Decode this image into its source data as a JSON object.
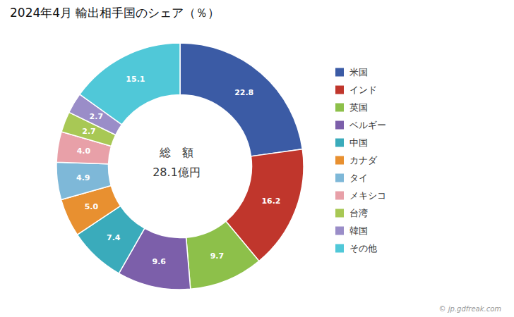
{
  "chart_data": {
    "type": "pie",
    "title": "2024年4月 輸出相手国のシェア（％）",
    "categories": [
      "米国",
      "インド",
      "英国",
      "ベルギー",
      "中国",
      "カナダ",
      "タイ",
      "メキシコ",
      "台湾",
      "韓国",
      "その他"
    ],
    "values": [
      22.8,
      16.2,
      9.7,
      9.6,
      7.4,
      5.0,
      4.9,
      4.0,
      2.7,
      2.7,
      15.1
    ],
    "value_labels": [
      "22.8",
      "16.2",
      "9.7",
      "9.6",
      "7.4",
      "5.0",
      "4.9",
      "4.0",
      "2.7",
      "2.7",
      "15.1"
    ],
    "colors": [
      "#3B5BA5",
      "#C0362C",
      "#8DC04A",
      "#7C5FAA",
      "#3AABBB",
      "#E89030",
      "#7EB8D8",
      "#E8A0A8",
      "#A8C855",
      "#9A8DC8",
      "#50C8D8"
    ],
    "data_labels": true,
    "legend": "right",
    "annotations": [
      "総　額",
      "28.1億円",
      "© jp.gdfreak.com"
    ]
  }
}
